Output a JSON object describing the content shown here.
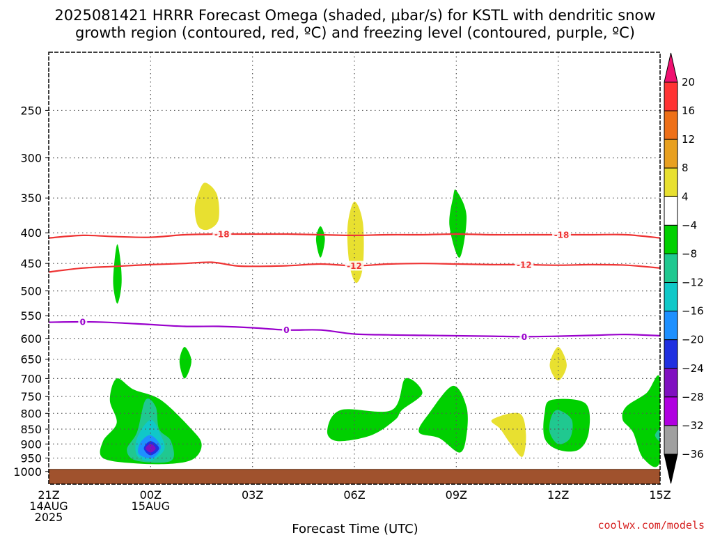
{
  "title": {
    "line1": "2025081421 HRRR Forecast Omega (shaded, μbar/s) for KSTL with dendritic snow",
    "line2": "growth region (contoured, red, ºC) and freezing level (contoured, purple, ºC)"
  },
  "credit": "coolwx.com/models",
  "colors": {
    "ground": "#a0522d",
    "isotherm": "#ee3333",
    "freezing_level": "#9900cc",
    "credit": "#d62020"
  },
  "chart_data": {
    "type": "heatmap",
    "title": "2025081421 HRRR Forecast Omega (shaded, μbar/s) for KSTL with dendritic snow growth region (contoured, red, ºC) and freezing level (contoured, purple, ºC)",
    "xlabel": "Forecast Time (UTC)",
    "ylabel": "",
    "x_range_hours": [
      0,
      18
    ],
    "x_ticks": [
      {
        "hour": 0,
        "lines": [
          "21Z",
          "14AUG",
          "2025"
        ]
      },
      {
        "hour": 3,
        "lines": [
          "00Z",
          "15AUG"
        ]
      },
      {
        "hour": 6,
        "lines": [
          "03Z"
        ]
      },
      {
        "hour": 9,
        "lines": [
          "06Z"
        ]
      },
      {
        "hour": 12,
        "lines": [
          "09Z"
        ]
      },
      {
        "hour": 15,
        "lines": [
          "12Z"
        ]
      },
      {
        "hour": 18,
        "lines": [
          "15Z"
        ]
      }
    ],
    "y_axis": {
      "scale": "log-pressure",
      "unit": "hPa",
      "reversed": true,
      "range": [
        1050,
        200
      ]
    },
    "y_ticks": [
      250,
      300,
      350,
      400,
      450,
      500,
      550,
      600,
      650,
      700,
      750,
      800,
      850,
      900,
      950,
      1000
    ],
    "grid": true,
    "colorbar": {
      "levels": [
        -36,
        -32,
        -28,
        -24,
        -20,
        -16,
        -12,
        -8,
        -4,
        4,
        8,
        12,
        16,
        20
      ],
      "labels": [
        "20",
        "16",
        "12",
        "8",
        "4",
        "−4",
        "−8",
        "−12",
        "−16",
        "−20",
        "−24",
        "−28",
        "−32",
        "−36"
      ],
      "colors": [
        "#000000",
        "#a0a0a0",
        "#b000e0",
        "#8010c0",
        "#2030e0",
        "#1e90ff",
        "#10c8c8",
        "#20c890",
        "#00d000",
        "#ffffff",
        "#e8e030",
        "#e8a020",
        "#ee7018",
        "#ff3333",
        "#f01070"
      ]
    },
    "ground_pressure": 1000,
    "omega_regions": [
      {
        "value_range": [
          4,
          8
        ],
        "color": "#e8e030",
        "points": [
          [
            4.6,
            330
          ],
          [
            4.95,
            345
          ],
          [
            5.0,
            380
          ],
          [
            4.7,
            395
          ],
          [
            4.4,
            390
          ],
          [
            4.3,
            365
          ],
          [
            4.4,
            345
          ]
        ]
      },
      {
        "value_range": [
          4,
          8
        ],
        "color": "#e8e030",
        "points": [
          [
            9.0,
            355
          ],
          [
            9.25,
            385
          ],
          [
            9.25,
            455
          ],
          [
            9.05,
            485
          ],
          [
            8.85,
            450
          ],
          [
            8.8,
            390
          ]
        ]
      },
      {
        "value_range": [
          4,
          8
        ],
        "color": "#e8e030",
        "points": [
          [
            15.0,
            620
          ],
          [
            15.25,
            665
          ],
          [
            15.0,
            705
          ],
          [
            14.75,
            665
          ]
        ]
      },
      {
        "value_range": [
          4,
          8
        ],
        "color": "#e8e030",
        "points": [
          [
            13.05,
            820
          ],
          [
            13.85,
            800
          ],
          [
            14.05,
            865
          ],
          [
            13.95,
            945
          ],
          [
            13.6,
            900
          ],
          [
            13.3,
            850
          ]
        ]
      },
      {
        "value_range": [
          -8,
          -4
        ],
        "color": "#00d000",
        "points": [
          [
            2.02,
            418
          ],
          [
            2.12,
            450
          ],
          [
            2.14,
            490
          ],
          [
            2.02,
            525
          ],
          [
            1.9,
            490
          ],
          [
            1.93,
            450
          ]
        ]
      },
      {
        "value_range": [
          -8,
          -4
        ],
        "color": "#00d000",
        "points": [
          [
            8.0,
            390
          ],
          [
            8.13,
            410
          ],
          [
            8.0,
            440
          ],
          [
            7.87,
            410
          ]
        ]
      },
      {
        "value_range": [
          -8,
          -4
        ],
        "color": "#00d000",
        "points": [
          [
            12.0,
            340
          ],
          [
            12.3,
            375
          ],
          [
            12.1,
            440
          ],
          [
            11.8,
            390
          ],
          [
            11.9,
            350
          ]
        ]
      },
      {
        "value_range": [
          -8,
          -4
        ],
        "color": "#00d000",
        "points": [
          [
            4.0,
            620
          ],
          [
            4.2,
            655
          ],
          [
            4.0,
            700
          ],
          [
            3.85,
            655
          ]
        ]
      },
      {
        "value_range": [
          -8,
          -4
        ],
        "color": "#00d000",
        "points": [
          [
            2.0,
            700
          ],
          [
            2.5,
            730
          ],
          [
            3.3,
            760
          ],
          [
            4.2,
            850
          ],
          [
            4.5,
            900
          ],
          [
            4.3,
            950
          ],
          [
            3.7,
            970
          ],
          [
            2.6,
            970
          ],
          [
            1.6,
            950
          ],
          [
            1.6,
            890
          ],
          [
            2.0,
            830
          ],
          [
            1.8,
            760
          ]
        ]
      },
      {
        "value_range": [
          -8,
          -4
        ],
        "color": "#00d000",
        "points": [
          [
            8.6,
            790
          ],
          [
            10.1,
            790
          ],
          [
            10.5,
            700
          ],
          [
            11.0,
            740
          ],
          [
            10.4,
            790
          ],
          [
            10.2,
            820
          ],
          [
            9.5,
            870
          ],
          [
            8.5,
            890
          ],
          [
            8.2,
            855
          ]
        ]
      },
      {
        "value_range": [
          -8,
          -4
        ],
        "color": "#00d000",
        "points": [
          [
            11.9,
            720
          ],
          [
            12.3,
            780
          ],
          [
            12.3,
            870
          ],
          [
            12.1,
            930
          ],
          [
            11.5,
            880
          ],
          [
            10.9,
            860
          ],
          [
            11.2,
            800
          ]
        ]
      },
      {
        "value_range": [
          -8,
          -4
        ],
        "color": "#00d000",
        "points": [
          [
            14.8,
            760
          ],
          [
            15.8,
            770
          ],
          [
            15.9,
            860
          ],
          [
            15.6,
            920
          ],
          [
            15.0,
            920
          ],
          [
            14.6,
            880
          ],
          [
            14.6,
            800
          ]
        ]
      },
      {
        "value_range": [
          -8,
          -4
        ],
        "color": "#00d000",
        "points": [
          [
            18.0,
            700
          ],
          [
            18.0,
            960
          ],
          [
            17.5,
            950
          ],
          [
            17.2,
            860
          ],
          [
            16.9,
            820
          ],
          [
            17.0,
            780
          ],
          [
            17.6,
            740
          ]
        ]
      },
      {
        "value_range": [
          -12,
          -8
        ],
        "color": "#20c890",
        "points": [
          [
            2.85,
            760
          ],
          [
            3.15,
            780
          ],
          [
            3.25,
            850
          ],
          [
            3.6,
            890
          ],
          [
            3.6,
            960
          ],
          [
            2.6,
            960
          ],
          [
            2.3,
            920
          ],
          [
            2.6,
            860
          ]
        ]
      },
      {
        "value_range": [
          -12,
          -8
        ],
        "color": "#20c890",
        "points": [
          [
            15.0,
            790
          ],
          [
            15.4,
            820
          ],
          [
            15.35,
            880
          ],
          [
            15.0,
            900
          ],
          [
            14.75,
            860
          ],
          [
            14.8,
            810
          ]
        ]
      },
      {
        "value_range": [
          -12,
          -8
        ],
        "color": "#20c890",
        "points": [
          [
            18.0,
            850
          ],
          [
            18.0,
            890
          ],
          [
            17.85,
            870
          ]
        ]
      },
      {
        "value_range": [
          -16,
          -12
        ],
        "color": "#10c8c8",
        "points": [
          [
            3.0,
            820
          ],
          [
            3.3,
            870
          ],
          [
            3.4,
            920
          ],
          [
            3.0,
            960
          ],
          [
            2.6,
            940
          ],
          [
            2.6,
            880
          ]
        ]
      },
      {
        "value_range": [
          -20,
          -16
        ],
        "color": "#1e90ff",
        "points": [
          [
            3.0,
            870
          ],
          [
            3.3,
            910
          ],
          [
            3.05,
            950
          ],
          [
            2.65,
            935
          ],
          [
            2.7,
            895
          ]
        ]
      },
      {
        "value_range": [
          -24,
          -20
        ],
        "color": "#2030e0",
        "points": [
          [
            3.0,
            890
          ],
          [
            3.25,
            915
          ],
          [
            3.0,
            940
          ],
          [
            2.8,
            915
          ]
        ]
      },
      {
        "value_range": [
          -28,
          -24
        ],
        "color": "#8010c0",
        "points": [
          [
            3.0,
            900
          ],
          [
            3.15,
            915
          ],
          [
            3.0,
            930
          ],
          [
            2.85,
            915
          ]
        ]
      }
    ],
    "contours": [
      {
        "name": "-18",
        "color": "#ee3333",
        "label": "-18",
        "label_hours": [
          5.1,
          15.1
        ],
        "points": [
          [
            0,
            408
          ],
          [
            1,
            404
          ],
          [
            2,
            406
          ],
          [
            3,
            407
          ],
          [
            4,
            403
          ],
          [
            5,
            402
          ],
          [
            6,
            402
          ],
          [
            7,
            402
          ],
          [
            8,
            403
          ],
          [
            9,
            404
          ],
          [
            10,
            403
          ],
          [
            11,
            403
          ],
          [
            12,
            402
          ],
          [
            13,
            403
          ],
          [
            14,
            403
          ],
          [
            15,
            403
          ],
          [
            16,
            403
          ],
          [
            17,
            403
          ],
          [
            18,
            408
          ]
        ]
      },
      {
        "name": "-12",
        "color": "#ee3333",
        "label": "-12",
        "label_hours": [
          9.0,
          14.0
        ],
        "points": [
          [
            0,
            465
          ],
          [
            1,
            458
          ],
          [
            2,
            455
          ],
          [
            3,
            452
          ],
          [
            4,
            450
          ],
          [
            4.8,
            448
          ],
          [
            5.5,
            454
          ],
          [
            6,
            455
          ],
          [
            7,
            454
          ],
          [
            8,
            451
          ],
          [
            9,
            454
          ],
          [
            10,
            451
          ],
          [
            11,
            450
          ],
          [
            12,
            451
          ],
          [
            13,
            452
          ],
          [
            14,
            452
          ],
          [
            15,
            453
          ],
          [
            16,
            452
          ],
          [
            17,
            453
          ],
          [
            18,
            458
          ]
        ]
      },
      {
        "name": "0",
        "color": "#9900cc",
        "label": "0",
        "label_hours": [
          1.0,
          7.0,
          14.0
        ],
        "points": [
          [
            0,
            564
          ],
          [
            1,
            563
          ],
          [
            2,
            565
          ],
          [
            3,
            569
          ],
          [
            4,
            573
          ],
          [
            5,
            573
          ],
          [
            6,
            576
          ],
          [
            7,
            581
          ],
          [
            8,
            581
          ],
          [
            9,
            590
          ],
          [
            10,
            592
          ],
          [
            11,
            593
          ],
          [
            12,
            594
          ],
          [
            13,
            595
          ],
          [
            14,
            596
          ],
          [
            15,
            595
          ],
          [
            16,
            593
          ],
          [
            17,
            591
          ],
          [
            18,
            594
          ]
        ]
      }
    ]
  }
}
